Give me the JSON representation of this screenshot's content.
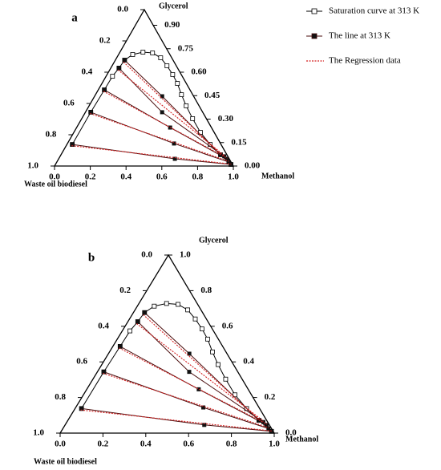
{
  "chart_data": [
    {
      "type": "ternary",
      "label": "a",
      "legend": "upper right",
      "glycerol_label": "Glycerol",
      "methanol_label": "Methanol",
      "waste_oil_label": "Waste oil biodiesel",
      "methanol_ticks": [
        {
          "value": 0,
          "label": "0.0"
        },
        0.2,
        0.4,
        0.6,
        0.8,
        {
          "value": 1,
          "label": "1.0"
        }
      ],
      "waste_oil_ticks": [
        {
          "value": 0,
          "label": "0.0"
        },
        0.2,
        0.4,
        0.6,
        0.8,
        {
          "value": 1,
          "label": "1.0"
        }
      ],
      "glycerol_ticks": [
        {
          "value": 0.9,
          "label": "0.90"
        },
        0.75,
        {
          "value": 0.6,
          "label": "0.60"
        },
        0.45,
        {
          "value": 0.3,
          "label": "0.30"
        },
        0.15,
        {
          "value": 0,
          "label": "0.00"
        }
      ],
      "series": [
        {
          "name": "Saturation curve at 313 K",
          "marker": "open-square",
          "color": "#000000",
          "methanol": [
            0.03,
            0.03,
            0.034,
            0.036,
            0.046,
            0.052,
            0.079,
            0.129,
            0.185,
            0.246,
            0.307,
            0.367,
            0.422,
            0.481,
            0.543,
            0.62,
            0.708,
            0.801,
            0.892,
            0.982
          ],
          "glycerol": [
            0.138,
            0.344,
            0.487,
            0.574,
            0.626,
            0.677,
            0.713,
            0.728,
            0.723,
            0.692,
            0.641,
            0.585,
            0.528,
            0.456,
            0.385,
            0.303,
            0.215,
            0.138,
            0.072,
            0.01
          ]
        },
        {
          "name": "The line at 313 K",
          "marker": "filled-square",
          "color": "#4a0d0d",
          "ties": [
            {
              "methanol": [
                0.03,
                0.65,
                0.982
              ],
              "glycerol": [
                0.138,
                0.046,
                0.01
              ]
            },
            {
              "methanol": [
                0.03,
                0.596,
                0.96
              ],
              "glycerol": [
                0.344,
                0.144,
                0.026
              ]
            },
            {
              "methanol": [
                0.034,
                0.523,
                0.941
              ],
              "glycerol": [
                0.487,
                0.246,
                0.046
              ]
            },
            {
              "methanol": [
                0.046,
                0.429,
                0.918
              ],
              "glycerol": [
                0.626,
                0.344,
                0.062
              ]
            },
            {
              "methanol": [
                0.052,
                0.378,
                0.892
              ],
              "glycerol": [
                0.677,
                0.446,
                0.072
              ]
            }
          ]
        },
        {
          "name": "The Regression data",
          "marker": "dotted-line",
          "color": "#d42020",
          "ties": [
            {
              "methanol": [
                0.03,
                0.982
              ],
              "glycerol": [
                0.13,
                0.012
              ]
            },
            {
              "methanol": [
                0.03,
                0.96
              ],
              "glycerol": [
                0.336,
                0.03
              ]
            },
            {
              "methanol": [
                0.034,
                0.941
              ],
              "glycerol": [
                0.478,
                0.05
              ]
            },
            {
              "methanol": [
                0.046,
                0.918
              ],
              "glycerol": [
                0.615,
                0.066
              ]
            },
            {
              "methanol": [
                0.052,
                0.892
              ],
              "glycerol": [
                0.665,
                0.076
              ]
            }
          ]
        }
      ]
    },
    {
      "type": "ternary",
      "label": "b",
      "glycerol_label": "Glycerol",
      "methanol_label": "Methanol",
      "waste_oil_label": "Waste oil biodiesel",
      "methanol_ticks": [
        {
          "value": 0,
          "label": "0.0"
        },
        0.2,
        0.4,
        0.6,
        0.8,
        {
          "value": 1,
          "label": "1.0"
        }
      ],
      "waste_oil_ticks": [
        {
          "value": 0,
          "label": "0.0"
        },
        0.2,
        0.4,
        0.6,
        0.8,
        {
          "value": 1,
          "label": "1.0"
        }
      ],
      "glycerol_ticks": [
        {
          "value": 1,
          "label": "1.0"
        },
        0.8,
        0.6,
        0.4,
        0.2,
        {
          "value": 0,
          "label": "0.0"
        }
      ],
      "series": [
        {
          "marker": "open-square",
          "color": "#000000",
          "methanol": [
            0.03,
            0.03,
            0.034,
            0.036,
            0.046,
            0.052,
            0.079,
            0.129,
            0.185,
            0.246,
            0.307,
            0.367,
            0.422,
            0.481,
            0.543,
            0.62,
            0.708,
            0.801,
            0.892,
            0.982
          ],
          "glycerol": [
            0.138,
            0.344,
            0.487,
            0.574,
            0.626,
            0.677,
            0.713,
            0.728,
            0.723,
            0.692,
            0.641,
            0.585,
            0.528,
            0.456,
            0.385,
            0.303,
            0.215,
            0.138,
            0.072,
            0.01
          ]
        },
        {
          "marker": "filled-square",
          "color": "#4a0d0d",
          "ties": [
            {
              "methanol": [
                0.03,
                0.65,
                0.982
              ],
              "glycerol": [
                0.138,
                0.046,
                0.01
              ]
            },
            {
              "methanol": [
                0.03,
                0.596,
                0.96
              ],
              "glycerol": [
                0.344,
                0.144,
                0.026
              ]
            },
            {
              "methanol": [
                0.034,
                0.523,
                0.941
              ],
              "glycerol": [
                0.487,
                0.246,
                0.046
              ]
            },
            {
              "methanol": [
                0.046,
                0.429,
                0.918
              ],
              "glycerol": [
                0.626,
                0.344,
                0.062
              ]
            },
            {
              "methanol": [
                0.052,
                0.378,
                0.892
              ],
              "glycerol": [
                0.677,
                0.446,
                0.072
              ]
            }
          ]
        },
        {
          "marker": "dotted-line",
          "color": "#d42020",
          "ties": [
            {
              "methanol": [
                0.03,
                0.982
              ],
              "glycerol": [
                0.13,
                0.012
              ]
            },
            {
              "methanol": [
                0.03,
                0.96
              ],
              "glycerol": [
                0.336,
                0.03
              ]
            },
            {
              "methanol": [
                0.034,
                0.941
              ],
              "glycerol": [
                0.478,
                0.05
              ]
            },
            {
              "methanol": [
                0.046,
                0.918
              ],
              "glycerol": [
                0.615,
                0.066
              ]
            },
            {
              "methanol": [
                0.052,
                0.892
              ],
              "glycerol": [
                0.665,
                0.076
              ]
            }
          ]
        }
      ]
    }
  ]
}
